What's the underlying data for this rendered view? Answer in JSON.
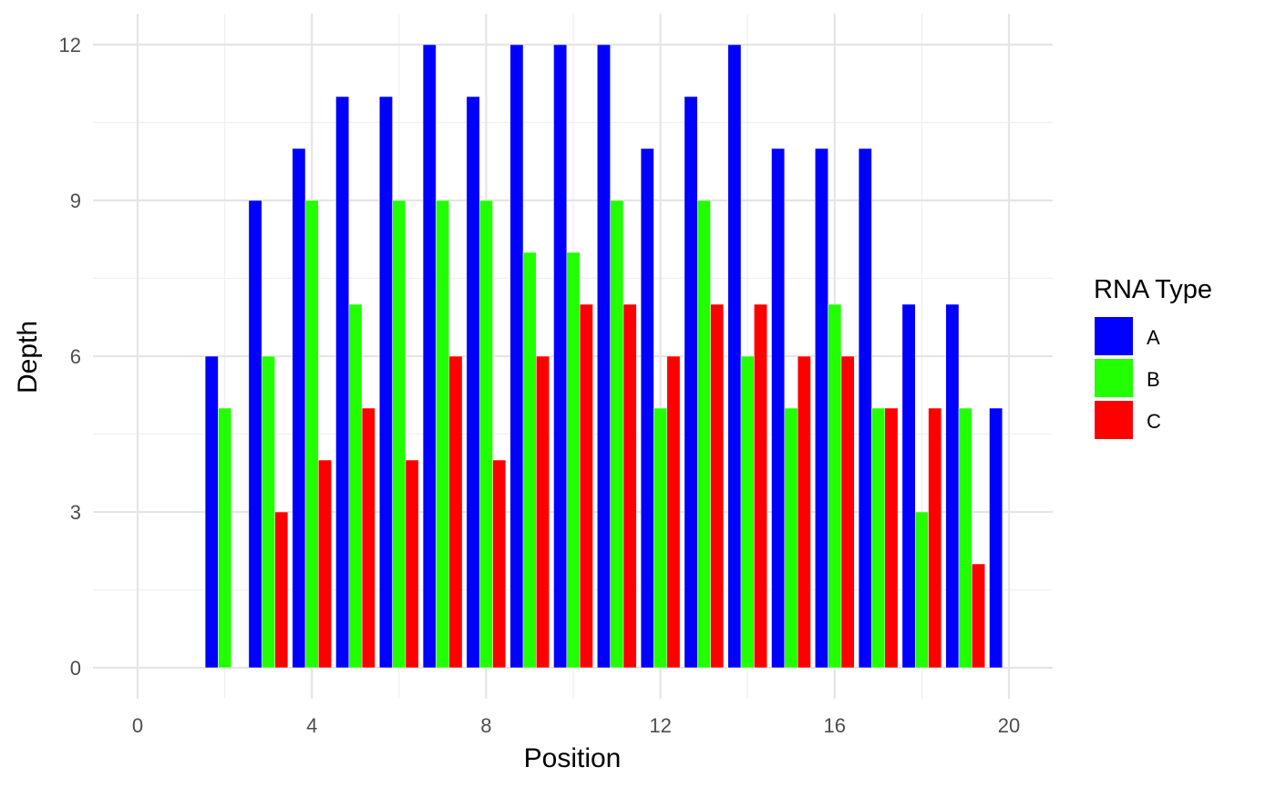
{
  "chart_data": {
    "type": "bar",
    "xlabel": "Position",
    "ylabel": "Depth",
    "x": [
      2,
      3,
      4,
      5,
      6,
      7,
      8,
      9,
      10,
      11,
      12,
      13,
      14,
      15,
      16,
      17,
      18,
      19,
      20
    ],
    "xlim": [
      0,
      20
    ],
    "ylim": [
      0,
      12
    ],
    "xticks": [
      "0",
      "4",
      "8",
      "12",
      "16",
      "20"
    ],
    "yticks": [
      "0",
      "3",
      "6",
      "9",
      "12"
    ],
    "grid": true,
    "legend": {
      "title": "RNA Type",
      "position": "right"
    },
    "series": [
      {
        "name": "A",
        "color": "#0000FF",
        "values": [
          6,
          9,
          10,
          11,
          11,
          12,
          11,
          12,
          12,
          12,
          10,
          11,
          12,
          10,
          10,
          10,
          7,
          7,
          5
        ]
      },
      {
        "name": "B",
        "color": "#22FF00",
        "values": [
          5,
          6,
          9,
          7,
          9,
          9,
          9,
          8,
          8,
          9,
          5,
          9,
          6,
          5,
          7,
          5,
          3,
          5,
          null
        ]
      },
      {
        "name": "C",
        "color": "#FF0000",
        "values": [
          null,
          3,
          4,
          5,
          4,
          6,
          4,
          6,
          7,
          7,
          6,
          7,
          7,
          6,
          6,
          5,
          5,
          2,
          null
        ]
      }
    ]
  }
}
